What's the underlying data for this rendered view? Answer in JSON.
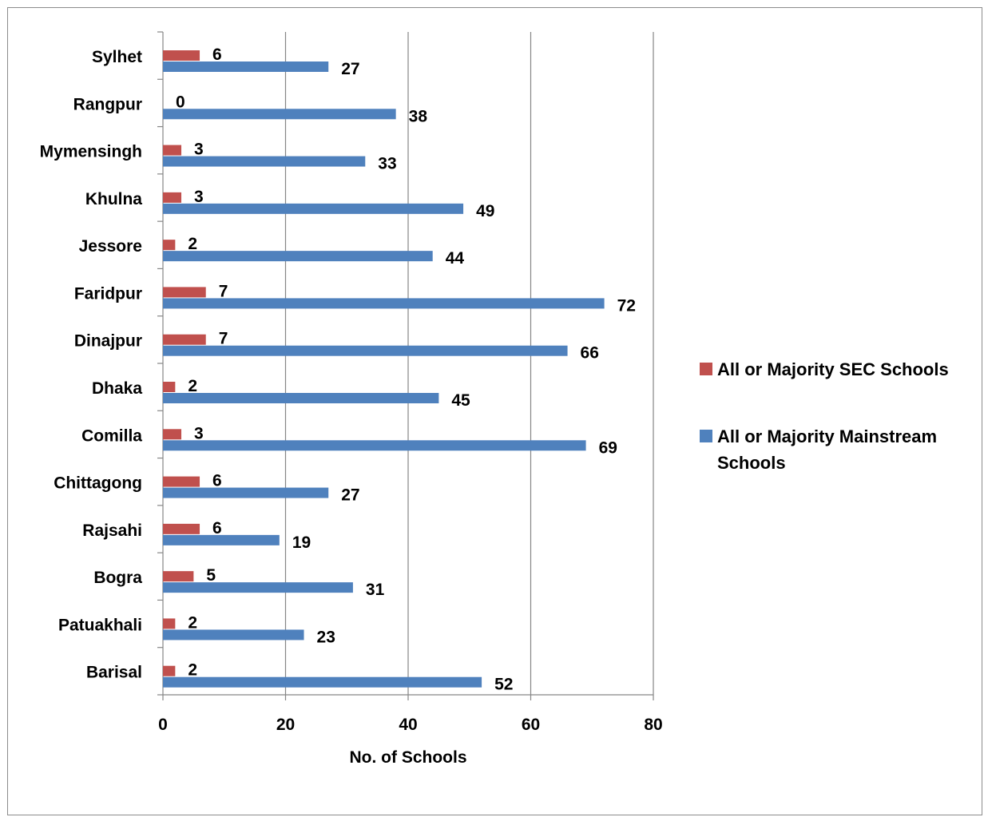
{
  "chart_data": {
    "type": "bar",
    "orientation": "horizontal",
    "categories": [
      "Barisal",
      "Patuakhali",
      "Bogra",
      "Rajsahi",
      "Chittagong",
      "Comilla",
      "Dhaka",
      "Dinajpur",
      "Faridpur",
      "Jessore",
      "Khulna",
      "Mymensingh",
      "Rangpur",
      "Sylhet"
    ],
    "series": [
      {
        "name": "All or Majority SEC Schools",
        "color": "#c0504d",
        "values": [
          2,
          2,
          5,
          6,
          6,
          3,
          2,
          7,
          7,
          2,
          3,
          3,
          0,
          6
        ]
      },
      {
        "name": "All or Majority Mainstream Schools",
        "color": "#4f81bd",
        "values": [
          52,
          23,
          31,
          19,
          27,
          69,
          45,
          66,
          72,
          44,
          49,
          33,
          38,
          27
        ]
      }
    ],
    "xlabel": "No. of Schools",
    "ylabel": "",
    "xlim": [
      0,
      80
    ],
    "xticks": [
      0,
      20,
      40,
      60,
      80
    ],
    "grid": "vertical",
    "legend_position": "right",
    "data_labels": true
  }
}
